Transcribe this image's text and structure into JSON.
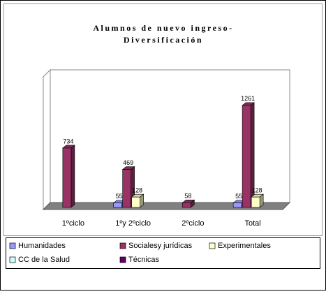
{
  "chart_data": {
    "type": "bar3d",
    "title": [
      "Alumnos de nuevo ingreso-",
      "Diversificación"
    ],
    "categories": [
      "1ºciclo",
      "1ºy 2ºciclo",
      "2ºciclo",
      "Total"
    ],
    "series": [
      {
        "name": "Humanidades",
        "color": "#9999ff",
        "values": [
          null,
          55,
          null,
          55
        ]
      },
      {
        "name": "Socialesy jurídicas",
        "color": "#993366",
        "values": [
          734,
          469,
          58,
          1261
        ]
      },
      {
        "name": "Experimentales",
        "color": "#ffffcc",
        "values": [
          null,
          128,
          null,
          128
        ]
      },
      {
        "name": "CC de la Salud",
        "color": "#ccffff",
        "values": [
          null,
          null,
          null,
          null
        ]
      },
      {
        "name": "Técnicas",
        "color": "#660066",
        "values": [
          null,
          null,
          null,
          null
        ]
      }
    ],
    "ylim": [
      0,
      1700
    ]
  }
}
